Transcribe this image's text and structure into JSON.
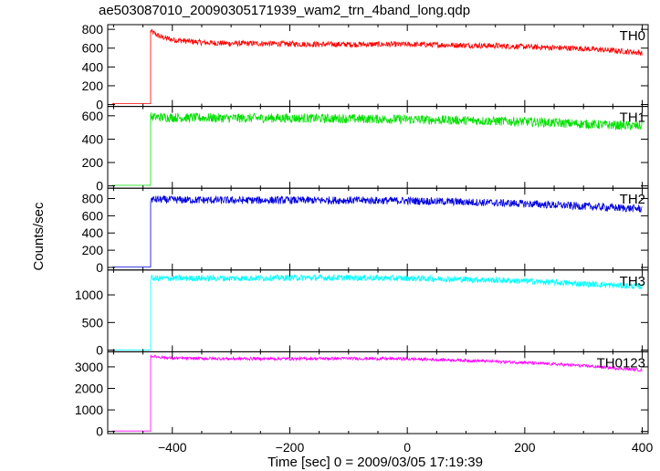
{
  "chart_data": {
    "type": "line",
    "title": "ae503087010_20090305171939_wam2_trn_4band_long.qdp",
    "xlabel": "Time [sec] 0 = 2009/03/05 17:19:39",
    "ylabel": "Counts/sec",
    "xlim": [
      -510,
      410
    ],
    "xticks": [
      -400,
      -200,
      0,
      200,
      400
    ],
    "xtick_labels": [
      "−400",
      "−200",
      "0",
      "200",
      "400"
    ],
    "grid": false,
    "trigger_time": -437,
    "panels": [
      {
        "name": "TH0",
        "color": "#ff0000",
        "ylim": [
          -20,
          850
        ],
        "yticks": [
          0,
          200,
          400,
          600,
          800
        ],
        "pre_level": 10,
        "x": [
          -437,
          -420,
          -400,
          -350,
          -300,
          -250,
          -200,
          -150,
          -100,
          -50,
          0,
          50,
          100,
          150,
          200,
          250,
          300,
          350,
          400
        ],
        "values": [
          780,
          720,
          690,
          660,
          650,
          650,
          645,
          640,
          640,
          640,
          640,
          635,
          630,
          625,
          615,
          605,
          595,
          575,
          550
        ],
        "noise": 30
      },
      {
        "name": "TH1",
        "color": "#00e000",
        "ylim": [
          -20,
          680
        ],
        "yticks": [
          0,
          200,
          400,
          600
        ],
        "pre_level": 5,
        "x": [
          -437,
          -400,
          -300,
          -200,
          -100,
          0,
          100,
          200,
          300,
          400
        ],
        "values": [
          590,
          585,
          580,
          580,
          575,
          570,
          560,
          550,
          530,
          510
        ],
        "noise": 40
      },
      {
        "name": "TH2",
        "color": "#0000dd",
        "ylim": [
          -30,
          920
        ],
        "yticks": [
          0,
          200,
          400,
          600,
          800
        ],
        "pre_level": 5,
        "x": [
          -437,
          -400,
          -300,
          -200,
          -100,
          0,
          100,
          200,
          300,
          400
        ],
        "values": [
          790,
          785,
          780,
          780,
          780,
          775,
          760,
          740,
          710,
          680
        ],
        "noise": 45
      },
      {
        "name": "TH3",
        "color": "#00ffff",
        "ylim": [
          -30,
          1450
        ],
        "yticks": [
          0,
          500,
          1000
        ],
        "pre_level": 5,
        "x": [
          -437,
          -400,
          -300,
          -200,
          -100,
          0,
          100,
          200,
          300,
          400
        ],
        "values": [
          1300,
          1300,
          1300,
          1310,
          1310,
          1300,
          1280,
          1250,
          1200,
          1150
        ],
        "noise": 55
      },
      {
        "name": "TH0123",
        "color": "#ff00ff",
        "ylim": [
          -100,
          3700
        ],
        "yticks": [
          0,
          1000,
          2000,
          3000
        ],
        "pre_level": 20,
        "x": [
          -437,
          -400,
          -300,
          -200,
          -100,
          0,
          100,
          200,
          300,
          400
        ],
        "values": [
          3500,
          3400,
          3380,
          3380,
          3390,
          3370,
          3300,
          3200,
          3050,
          2850
        ],
        "noise": 70
      }
    ]
  }
}
